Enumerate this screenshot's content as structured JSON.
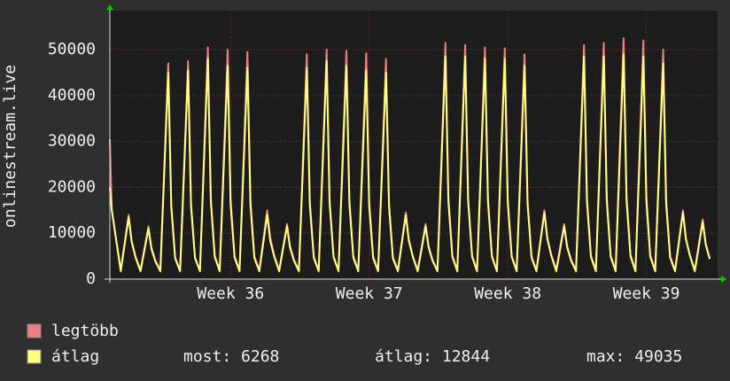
{
  "chart_data": {
    "type": "line",
    "ylabel": "onlinestream.live",
    "x": [
      0,
      0.1,
      0.55,
      0.95,
      1.1,
      1.3,
      1.55,
      1.95,
      2.1,
      2.3,
      2.55,
      2.95,
      3.1,
      3.3,
      3.55,
      3.95,
      4.1,
      4.3,
      4.55,
      4.95,
      5.1,
      5.3,
      5.55,
      5.95,
      6.1,
      6.3,
      6.55,
      6.95,
      7.1,
      7.3,
      7.55,
      7.95,
      8.1,
      8.3,
      8.55,
      8.95,
      9.1,
      9.3,
      9.55,
      9.95,
      10.1,
      10.3,
      10.55,
      10.95,
      11.1,
      11.3,
      11.55,
      11.95,
      12.1,
      12.3,
      12.55,
      12.95,
      13.1,
      13.3,
      13.55,
      13.95,
      14.1,
      14.3,
      14.55,
      14.95,
      15.1,
      15.3,
      15.55,
      15.95,
      16.1,
      16.3,
      16.55,
      16.95,
      17.1,
      17.3,
      17.55,
      17.95,
      18.1,
      18.3,
      18.55,
      18.95,
      19.1,
      19.3,
      19.55,
      19.95,
      20.1,
      20.3,
      20.55,
      20.95,
      21.1,
      21.3,
      21.55,
      21.95,
      22.1,
      22.3,
      22.55,
      22.95,
      23.1,
      23.3,
      23.55,
      23.95,
      24.1,
      24.3,
      24.55,
      24.95,
      25.1,
      25.3,
      25.55,
      25.95,
      26.1,
      26.3,
      26.55,
      26.95,
      27.1,
      27.3,
      27.55,
      27.95,
      28.1,
      28.3,
      28.55,
      28.95,
      29.1,
      29.3,
      29.55,
      29.95,
      30.1,
      30.3
    ],
    "series": [
      {
        "name": "legtöbb",
        "color": "#f08080",
        "values": [
          30500,
          15000,
          2000,
          14000,
          8400,
          4900,
          2000,
          11500,
          6900,
          4025,
          2000,
          47000,
          16450,
          4700,
          2000,
          47500,
          16625,
          4750,
          2000,
          50500,
          17675,
          5050,
          2000,
          50000,
          17500,
          5000,
          2000,
          49500,
          17325,
          4950,
          2000,
          15000,
          9000,
          5250,
          2000,
          12000,
          7200,
          4200,
          2000,
          49000,
          17150,
          4900,
          2000,
          50000,
          17500,
          5000,
          2000,
          49800,
          17430,
          4980,
          2000,
          49200,
          17220,
          4920,
          2000,
          48000,
          16800,
          4800,
          2000,
          14500,
          8700,
          5075,
          2000,
          12000,
          7200,
          4200,
          2000,
          51500,
          18025,
          5150,
          2000,
          51000,
          17850,
          5100,
          2000,
          50500,
          17675,
          5050,
          2000,
          50300,
          17605,
          5030,
          2000,
          49000,
          17150,
          4900,
          2000,
          15000,
          9000,
          5250,
          2000,
          12000,
          7200,
          4200,
          2000,
          51000,
          17850,
          5100,
          2000,
          51500,
          18025,
          5150,
          2000,
          52500,
          18375,
          5250,
          2000,
          52000,
          18200,
          5200,
          2000,
          50000,
          17500,
          5000,
          2000,
          15000,
          9000,
          5250,
          2000,
          13000,
          7800,
          4550
        ]
      },
      {
        "name": "átlag",
        "color": "#ffff80",
        "values": [
          20000,
          15000,
          1700,
          13500,
          8100,
          4725,
          1700,
          11000,
          6600,
          3850,
          1700,
          45000,
          15750,
          4500,
          1700,
          45500,
          15925,
          4550,
          1700,
          48000,
          16800,
          4800,
          1700,
          46500,
          16275,
          4650,
          1700,
          46000,
          16100,
          4600,
          1700,
          14000,
          8400,
          4900,
          1700,
          11500,
          6900,
          4025,
          1700,
          46000,
          16100,
          4600,
          1700,
          47500,
          16625,
          4750,
          1700,
          46500,
          16275,
          4650,
          1700,
          45500,
          15925,
          4550,
          1700,
          45000,
          15750,
          4500,
          1700,
          14000,
          8400,
          4900,
          1700,
          11500,
          6900,
          4025,
          1700,
          48500,
          16975,
          4850,
          1700,
          48500,
          16975,
          4850,
          1700,
          48000,
          16800,
          4800,
          1700,
          48000,
          16800,
          4800,
          1700,
          46500,
          16275,
          4650,
          1700,
          14500,
          8700,
          5075,
          1700,
          11500,
          6900,
          4025,
          1700,
          48500,
          16975,
          4850,
          1700,
          48500,
          16975,
          4850,
          1700,
          49000,
          17150,
          4900,
          1700,
          48500,
          16975,
          4850,
          1700,
          47000,
          16450,
          4700,
          1700,
          14500,
          8700,
          5075,
          1700,
          12500,
          7500,
          4375
        ]
      }
    ],
    "xlim": [
      0,
      30.7
    ],
    "xticks": [
      {
        "value": 6.1,
        "label": "Week 36"
      },
      {
        "value": 13.1,
        "label": "Week 37"
      },
      {
        "value": 20.1,
        "label": "Week 38"
      },
      {
        "value": 27.1,
        "label": "Week 39"
      }
    ],
    "ylim": [
      0,
      58500
    ],
    "yticks": [
      0,
      10000,
      20000,
      30000,
      40000,
      50000
    ],
    "grid": true,
    "stats": [
      {
        "label": "most:",
        "value": 6268
      },
      {
        "label": "átlag:",
        "value": 12844
      },
      {
        "label": "max:",
        "value": 49035
      }
    ]
  }
}
